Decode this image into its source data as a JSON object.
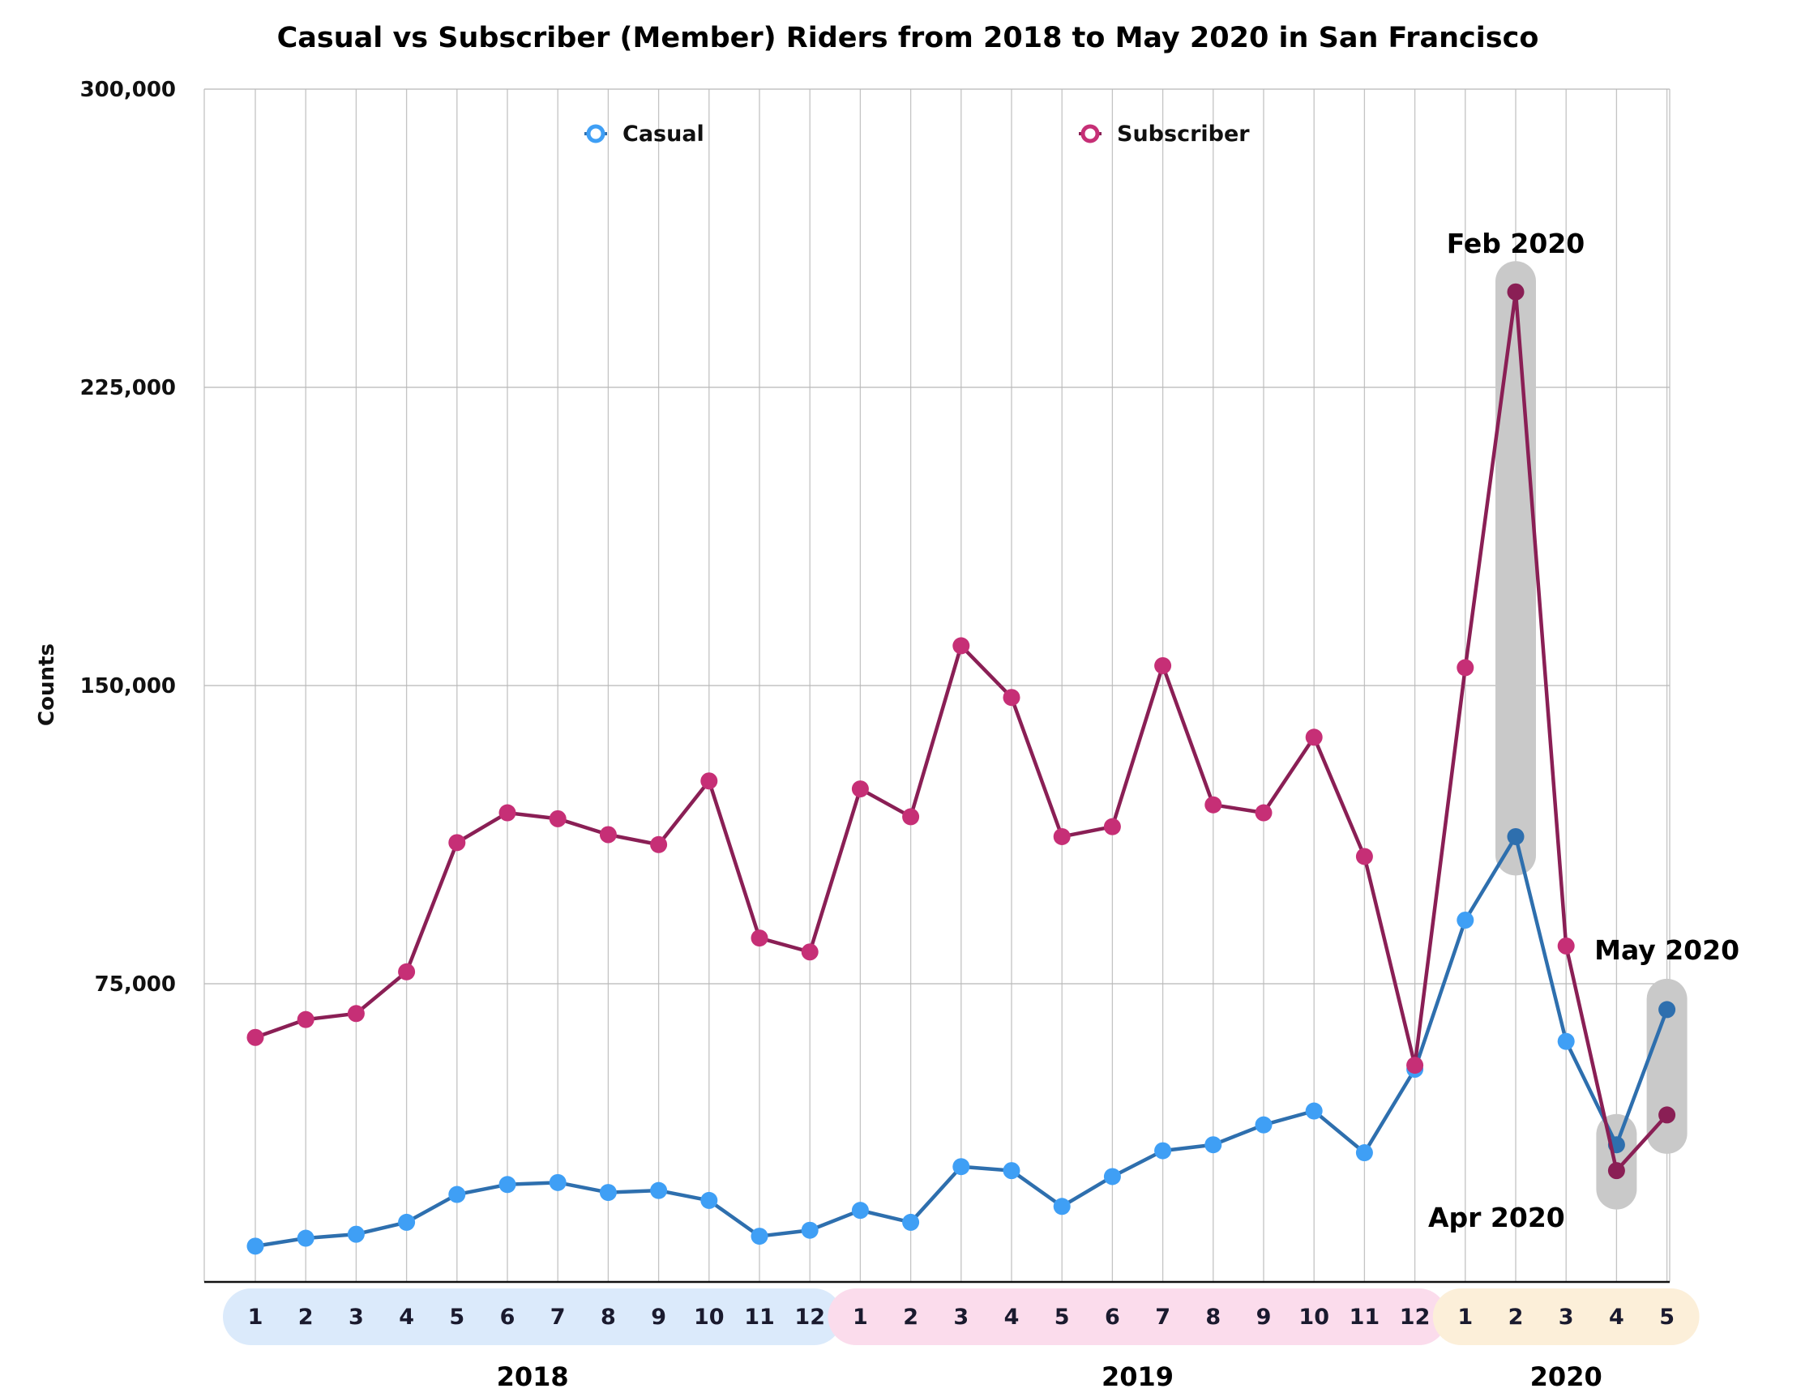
{
  "chart_data": {
    "type": "line",
    "title": "Casual vs Subscriber (Member) Riders from 2018 to May 2020 in San Francisco",
    "ylabel": "Counts",
    "xlabel": "",
    "ylim": [
      0,
      300000
    ],
    "y_ticks": [
      75000,
      150000,
      225000,
      300000
    ],
    "y_tick_labels": [
      "75,000",
      "150,000",
      "225,000",
      "300,000"
    ],
    "grid": true,
    "legend_position": "top",
    "years": [
      {
        "label": "2018",
        "months": [
          "1",
          "2",
          "3",
          "4",
          "5",
          "6",
          "7",
          "8",
          "9",
          "10",
          "11",
          "12"
        ],
        "band_color": "#dbeafb"
      },
      {
        "label": "2019",
        "months": [
          "1",
          "2",
          "3",
          "4",
          "5",
          "6",
          "7",
          "8",
          "9",
          "10",
          "11",
          "12"
        ],
        "band_color": "#fbdcec"
      },
      {
        "label": "2020",
        "months": [
          "1",
          "2",
          "3",
          "4",
          "5"
        ],
        "band_color": "#fcefd9"
      }
    ],
    "series": [
      {
        "name": "Casual",
        "color": "#3f9ff5",
        "line_color": "#2e6fae",
        "values": [
          9000,
          11000,
          12000,
          15000,
          22000,
          24500,
          25000,
          22500,
          23000,
          20500,
          11500,
          13000,
          18000,
          15000,
          29000,
          28000,
          19000,
          26500,
          33000,
          34500,
          39500,
          43000,
          32500,
          53500,
          91000,
          112000,
          60500,
          34500,
          68500
        ]
      },
      {
        "name": "Subscriber",
        "color": "#c62f76",
        "line_color": "#8a1f55",
        "values": [
          61500,
          66000,
          67500,
          78000,
          110500,
          118000,
          116500,
          112500,
          110000,
          126000,
          86500,
          83000,
          124000,
          117000,
          160000,
          147000,
          112000,
          114500,
          155000,
          120000,
          118000,
          137000,
          107000,
          54500,
          154500,
          249000,
          84500,
          28000,
          42000
        ]
      }
    ],
    "annotations": [
      {
        "text": "Feb 2020",
        "index": 25
      },
      {
        "text": "Apr 2020",
        "index": 27
      },
      {
        "text": "May 2020",
        "index": 28
      }
    ]
  }
}
